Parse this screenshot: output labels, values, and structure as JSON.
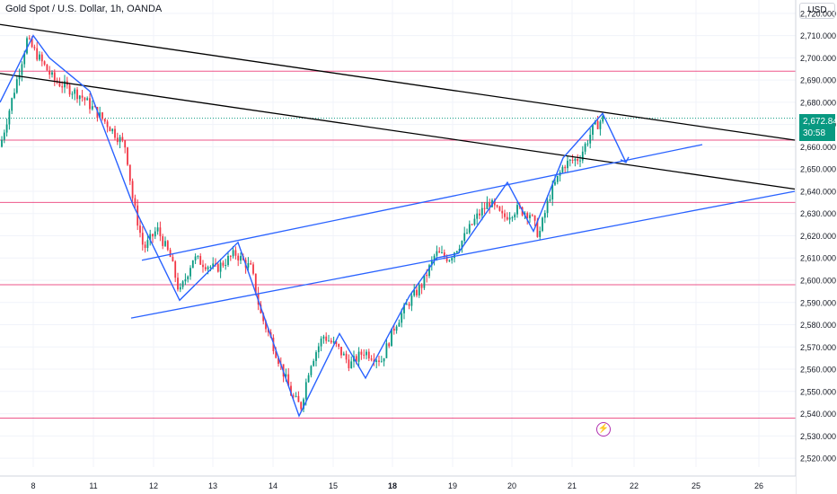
{
  "header": {
    "title": "Gold Spot / U.S. Dollar, 1h, OANDA"
  },
  "currency_label": "USD",
  "last_price": {
    "value": "2,672.845",
    "countdown": "30:58",
    "color": "#089981"
  },
  "colors": {
    "up": "#089981",
    "down": "#f23645",
    "pattern": "#2962ff",
    "trendline": "#000000",
    "level": "#e91e63"
  },
  "icons": {
    "event": "lightning-icon"
  },
  "chart_data": {
    "type": "candlestick",
    "symbol": "Gold Spot / U.S. Dollar",
    "interval": "1h",
    "ylim": [
      2516,
      2726
    ],
    "y_ticks": [
      2520,
      2530,
      2540,
      2550,
      2560,
      2570,
      2580,
      2590,
      2600,
      2610,
      2620,
      2630,
      2640,
      2650,
      2660,
      2670,
      2680,
      2690,
      2700,
      2710,
      2720
    ],
    "y_tick_labels": [
      "2,520.000",
      "2,530.000",
      "2,540.000",
      "2,550.000",
      "2,560.000",
      "2,570.000",
      "2,580.000",
      "2,590.000",
      "2,600.000",
      "2,610.000",
      "2,620.000",
      "2,630.000",
      "2,640.000",
      "2,650.000",
      "2,660.000",
      "2,670.000",
      "2,680.000",
      "2,690.000",
      "2,700.000",
      "2,710.000",
      "2,720.000"
    ],
    "x_ticks": [
      "8",
      "11",
      "12",
      "13",
      "14",
      "15",
      "18",
      "19",
      "20",
      "21",
      "22",
      "25",
      "26"
    ],
    "price_path": [
      [
        0,
        2660
      ],
      [
        30,
        2708
      ],
      [
        60,
        2690
      ],
      [
        90,
        2683
      ],
      [
        120,
        2670
      ],
      [
        140,
        2660
      ],
      [
        148,
        2636
      ],
      [
        160,
        2614
      ],
      [
        175,
        2623
      ],
      [
        190,
        2610
      ],
      [
        200,
        2594
      ],
      [
        215,
        2610
      ],
      [
        240,
        2605
      ],
      [
        262,
        2612
      ],
      [
        280,
        2605
      ],
      [
        290,
        2585
      ],
      [
        305,
        2570
      ],
      [
        325,
        2548
      ],
      [
        335,
        2543
      ],
      [
        345,
        2562
      ],
      [
        360,
        2575
      ],
      [
        375,
        2570
      ],
      [
        390,
        2562
      ],
      [
        405,
        2568
      ],
      [
        425,
        2564
      ],
      [
        440,
        2580
      ],
      [
        455,
        2590
      ],
      [
        470,
        2598
      ],
      [
        485,
        2612
      ],
      [
        500,
        2610
      ],
      [
        515,
        2618
      ],
      [
        530,
        2628
      ],
      [
        545,
        2635
      ],
      [
        560,
        2628
      ],
      [
        575,
        2632
      ],
      [
        590,
        2630
      ],
      [
        600,
        2620
      ],
      [
        612,
        2638
      ],
      [
        628,
        2652
      ],
      [
        645,
        2655
      ],
      [
        660,
        2668
      ],
      [
        672,
        2673
      ]
    ],
    "horizontal_levels": [
      2694,
      2663,
      2635,
      2598,
      2538
    ],
    "current_price": 2672.845,
    "trendlines": [
      {
        "x": [
          0,
          885
        ],
        "y": [
          2715,
          2663
        ]
      },
      {
        "x": [
          0,
          885
        ],
        "y": [
          2693,
          2641
        ]
      }
    ],
    "channel_lines": [
      {
        "x": [
          158,
          782
        ],
        "y": [
          2609,
          2661
        ]
      },
      {
        "x": [
          146,
          885
        ],
        "y": [
          2583,
          2640
        ]
      }
    ],
    "pattern_path": {
      "x": [
        0,
        37,
        55,
        100,
        148,
        200,
        265,
        285,
        333,
        378,
        407,
        456,
        486,
        510,
        565,
        594,
        627,
        671,
        697
      ],
      "y": [
        2680,
        2710,
        2700,
        2685,
        2634,
        2591,
        2617,
        2594,
        2539,
        2576,
        2556,
        2593,
        2610,
        2612,
        2644,
        2622,
        2655,
        2675,
        2653
      ]
    }
  }
}
